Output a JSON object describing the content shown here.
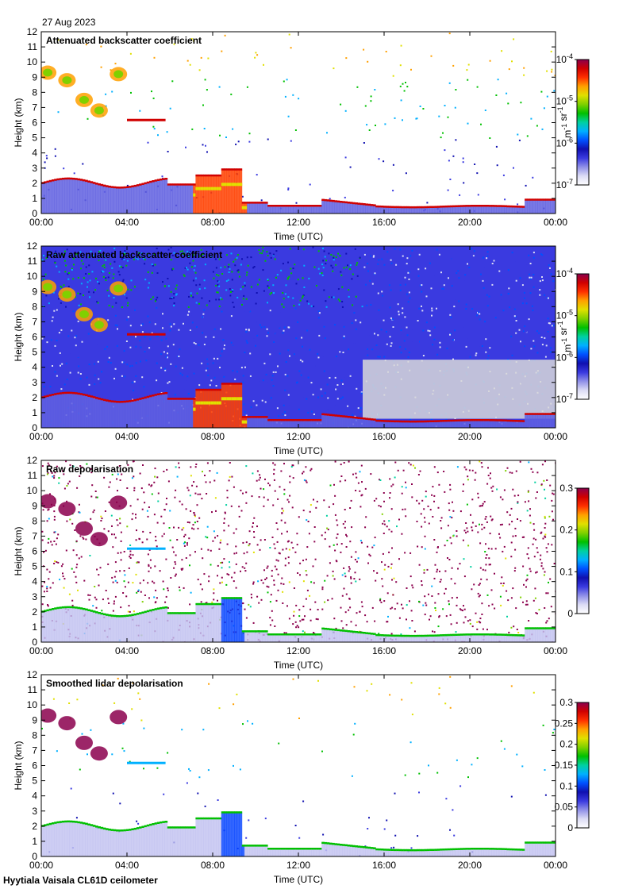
{
  "date_label": "27 Aug 2023",
  "footer": "Hyytiala Vaisala CL61D ceilometer",
  "colors": {
    "cmap": [
      "#ffffff",
      "#dcdcf5",
      "#9090e8",
      "#3a3ae0",
      "#1010b0",
      "#0050ff",
      "#00b0ff",
      "#00d0a0",
      "#00c000",
      "#80d000",
      "#e0e000",
      "#ffa000",
      "#ff3000",
      "#d00000",
      "#8b004d"
    ],
    "clear_sky": "#d8d8d8",
    "outer_bg": "#ffffff"
  },
  "chart_data": [
    {
      "type": "heatmap",
      "title": "Attenuated backscatter coefficient",
      "xlabel": "Time (UTC)",
      "ylabel": "Height (km)",
      "x_ticks": [
        "00:00",
        "04:00",
        "08:00",
        "12:00",
        "16:00",
        "20:00",
        "00:00"
      ],
      "x_range_hours": [
        0,
        24
      ],
      "y_ticks": [
        0,
        1,
        2,
        3,
        4,
        5,
        6,
        7,
        8,
        9,
        10,
        11,
        12
      ],
      "y_range_km": [
        0,
        12
      ],
      "colorbar": {
        "ticks": [
          "10^-7",
          "10^-6",
          "10^-5",
          "10^-4"
        ],
        "label": "m^-1 sr^-1",
        "scale": "log",
        "range": [
          1e-07,
          0.0001
        ]
      },
      "background": "white",
      "noise_level": 0.09,
      "boundary_layer": true,
      "grid": false
    },
    {
      "type": "heatmap",
      "title": "Raw attenuated backscatter coefficient",
      "xlabel": "Time (UTC)",
      "ylabel": "Height (km)",
      "x_ticks": [
        "00:00",
        "04:00",
        "08:00",
        "12:00",
        "16:00",
        "20:00",
        "00:00"
      ],
      "x_range_hours": [
        0,
        24
      ],
      "y_ticks": [
        0,
        1,
        2,
        3,
        4,
        5,
        6,
        7,
        8,
        9,
        10,
        11,
        12
      ],
      "y_range_km": [
        0,
        12
      ],
      "colorbar": {
        "ticks": [
          "10^-7",
          "10^-6",
          "10^-5",
          "10^-4"
        ],
        "label": "m^-1 sr^-1",
        "scale": "log",
        "range": [
          1e-07,
          0.0001
        ]
      },
      "background": "noise",
      "noise_level": 0.8,
      "boundary_layer": true,
      "grid": false
    },
    {
      "type": "heatmap",
      "title": "Raw depolarisation",
      "xlabel": "Time (UTC)",
      "ylabel": "Height (km)",
      "x_ticks": [
        "00:00",
        "04:00",
        "08:00",
        "12:00",
        "16:00",
        "20:00",
        "00:00"
      ],
      "x_range_hours": [
        0,
        24
      ],
      "y_ticks": [
        0,
        1,
        2,
        3,
        4,
        5,
        6,
        7,
        8,
        9,
        10,
        11,
        12
      ],
      "y_range_km": [
        0,
        12
      ],
      "colorbar": {
        "ticks": [
          "0",
          "0.1",
          "0.2",
          "0.3"
        ],
        "label": "",
        "scale": "linear",
        "range": [
          0,
          0.3
        ]
      },
      "background": "purple-noise",
      "noise_level": 0.55,
      "boundary_layer": true,
      "grid": false
    },
    {
      "type": "heatmap",
      "title": "Smoothed lidar depolarisation",
      "xlabel": "Time (UTC)",
      "ylabel": "Height (km)",
      "x_ticks": [
        "00:00",
        "04:00",
        "08:00",
        "12:00",
        "16:00",
        "20:00",
        "00:00"
      ],
      "x_range_hours": [
        0,
        24
      ],
      "y_ticks": [
        0,
        1,
        2,
        3,
        4,
        5,
        6,
        7,
        8,
        9,
        10,
        11,
        12
      ],
      "y_range_km": [
        0,
        12
      ],
      "colorbar": {
        "ticks": [
          "0",
          "0.05",
          "0.1",
          "0.15",
          "0.2",
          "0.25",
          "0.3"
        ],
        "label": "",
        "scale": "linear",
        "range": [
          0,
          0.3
        ]
      },
      "background": "white",
      "noise_level": 0.05,
      "boundary_layer": true,
      "grid": false
    }
  ]
}
